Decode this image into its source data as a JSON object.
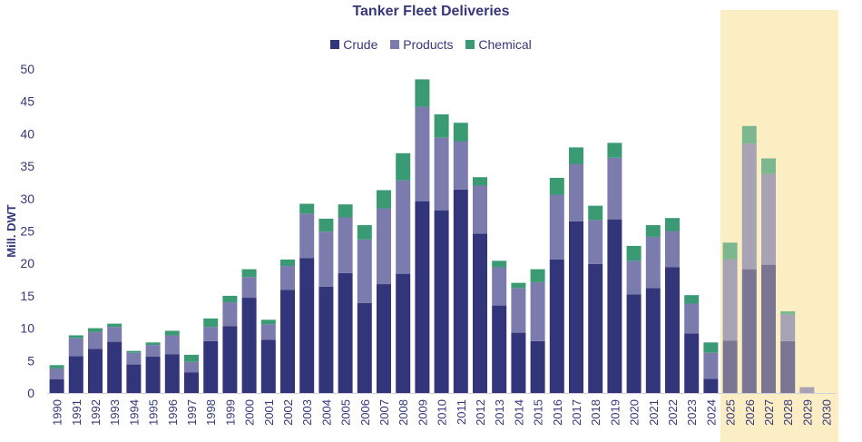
{
  "chart_data": {
    "type": "bar",
    "stacked": true,
    "title": "Tanker Fleet Deliveries",
    "ylabel": "Mill. DWT",
    "xlabel": "",
    "ylim": [
      0,
      50
    ],
    "yticks": [
      0,
      5,
      10,
      15,
      20,
      25,
      30,
      35,
      40,
      45,
      50
    ],
    "grid": false,
    "legend_position": "top-center",
    "categories": [
      "1990",
      "1991",
      "1992",
      "1993",
      "1994",
      "1995",
      "1996",
      "1997",
      "1998",
      "1999",
      "2000",
      "2001",
      "2002",
      "2003",
      "2004",
      "2005",
      "2006",
      "2007",
      "2008",
      "2009",
      "2010",
      "2011",
      "2012",
      "2013",
      "2014",
      "2015",
      "2016",
      "2017",
      "2018",
      "2019",
      "2020",
      "2021",
      "2022",
      "2023",
      "2024",
      "2025",
      "2026",
      "2027",
      "2028",
      "2029",
      "2030"
    ],
    "series": [
      {
        "name": "Crude",
        "color": "#33357a",
        "values": [
          2.1,
          5.7,
          6.8,
          7.9,
          4.4,
          5.6,
          6.0,
          3.2,
          8.0,
          10.3,
          14.7,
          8.2,
          15.9,
          20.8,
          16.4,
          18.5,
          13.9,
          16.8,
          18.4,
          29.6,
          28.2,
          31.4,
          24.6,
          13.5,
          9.3,
          8.0,
          20.6,
          26.5,
          19.9,
          26.8,
          15.2,
          16.2,
          19.4,
          9.2,
          2.2,
          8.1,
          19.1,
          19.8,
          8.0,
          0.0,
          0.0
        ]
      },
      {
        "name": "Products",
        "color": "#7b7bad",
        "values": [
          1.7,
          2.8,
          2.6,
          2.3,
          1.8,
          1.8,
          2.9,
          1.6,
          2.2,
          3.7,
          3.2,
          2.4,
          3.7,
          6.9,
          8.5,
          8.6,
          9.8,
          11.7,
          14.4,
          14.6,
          11.2,
          7.4,
          7.4,
          5.9,
          6.9,
          9.1,
          10.0,
          8.8,
          6.8,
          9.5,
          5.2,
          7.9,
          5.6,
          4.6,
          4.0,
          12.5,
          19.4,
          14.0,
          4.1,
          0.9,
          0.0
        ]
      },
      {
        "name": "Chemical",
        "color": "#3a9a73",
        "values": [
          0.5,
          0.4,
          0.6,
          0.5,
          0.3,
          0.4,
          0.7,
          1.1,
          1.3,
          1.0,
          1.2,
          0.7,
          1.0,
          1.5,
          2.0,
          2.0,
          2.2,
          2.8,
          4.2,
          4.2,
          3.6,
          2.9,
          1.3,
          1.0,
          0.8,
          2.0,
          2.6,
          2.6,
          2.2,
          2.3,
          2.3,
          1.8,
          2.0,
          1.3,
          1.6,
          2.6,
          2.7,
          2.4,
          0.5,
          0.0,
          0.0
        ]
      }
    ],
    "highlight": {
      "from": "2025",
      "to": "2030",
      "color": "#fbeec4"
    }
  }
}
